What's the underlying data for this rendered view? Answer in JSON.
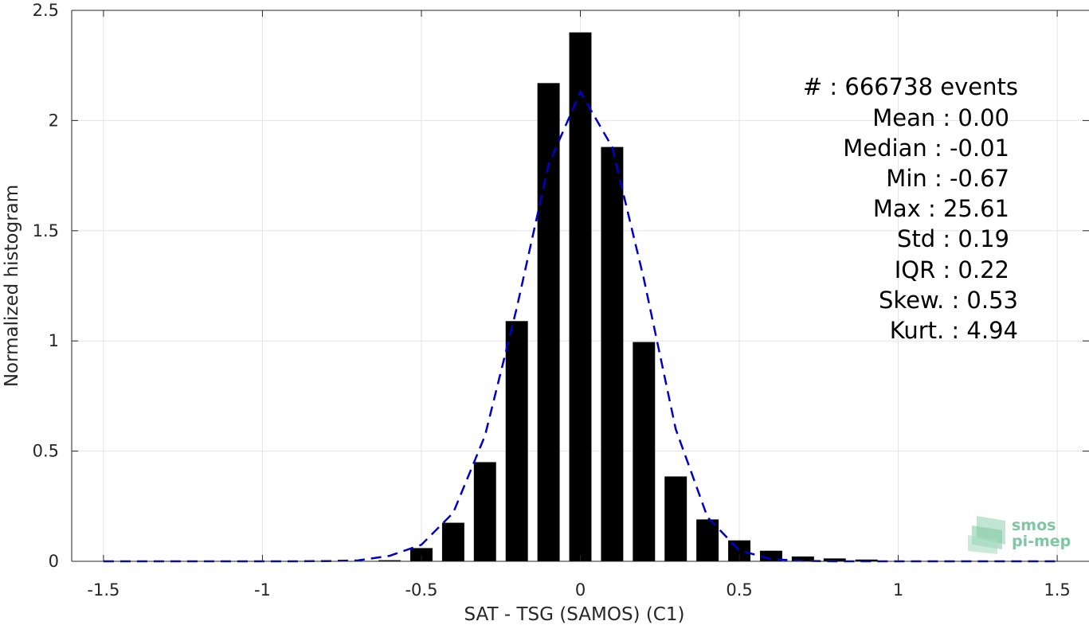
{
  "chart_data": {
    "type": "bar",
    "xlabel": "SAT - TSG (SAMOS) (C1)",
    "ylabel": "Normalized histogram",
    "xlim": [
      -1.6,
      1.6
    ],
    "ylim": [
      0,
      2.5
    ],
    "grid": true,
    "x_ticks": [
      -1.5,
      -1,
      -0.5,
      0,
      0.5,
      1,
      1.5
    ],
    "x_tick_labels": [
      "-1.5",
      "-1",
      "-0.5",
      "0",
      "0.5",
      "1",
      "1.5"
    ],
    "y_ticks": [
      0,
      0.5,
      1,
      1.5,
      2,
      2.5
    ],
    "y_tick_labels": [
      "0",
      "0.5",
      "1",
      "1.5",
      "2",
      "2.5"
    ],
    "bar_width": 0.07,
    "bar_color": "#000000",
    "bars": {
      "x": [
        -0.6,
        -0.5,
        -0.4,
        -0.3,
        -0.2,
        -0.1,
        0.0,
        0.1,
        0.2,
        0.3,
        0.4,
        0.5,
        0.6,
        0.7,
        0.8,
        0.9
      ],
      "values": [
        0.005,
        0.06,
        0.175,
        0.45,
        1.09,
        2.17,
        2.4,
        1.88,
        0.995,
        0.385,
        0.19,
        0.095,
        0.048,
        0.022,
        0.013,
        0.008
      ]
    },
    "fit_line": {
      "style": "dashed",
      "color": "#0000cc",
      "x": [
        -1.5,
        -1.4,
        -1.3,
        -1.2,
        -1.1,
        -1.0,
        -0.9,
        -0.8,
        -0.7,
        -0.6,
        -0.5,
        -0.4,
        -0.3,
        -0.2,
        -0.1,
        0.0,
        0.1,
        0.2,
        0.3,
        0.4,
        0.5,
        0.6,
        0.7,
        0.8,
        0.9,
        1.0,
        1.1,
        1.2,
        1.3,
        1.4,
        1.5
      ],
      "y": [
        0,
        0,
        0,
        0,
        0,
        0,
        0,
        0.001,
        0.004,
        0.025,
        0.075,
        0.22,
        0.57,
        1.15,
        1.8,
        2.13,
        1.88,
        1.28,
        0.6,
        0.2,
        0.05,
        0.01,
        0.002,
        0,
        0,
        0,
        0,
        0,
        0,
        0,
        0
      ]
    },
    "annotations": [
      "#  : 666738 events",
      "Mean : 0.00",
      "Median : -0.01",
      "Min : -0.67",
      "Max : 25.61",
      "Std : 0.19",
      "IQR : 0.22",
      "Skew. : 0.53",
      "Kurt. : 4.94"
    ]
  },
  "logo": {
    "line1": "smos",
    "line2": "pi-mep",
    "color": "#7dc7a3"
  }
}
